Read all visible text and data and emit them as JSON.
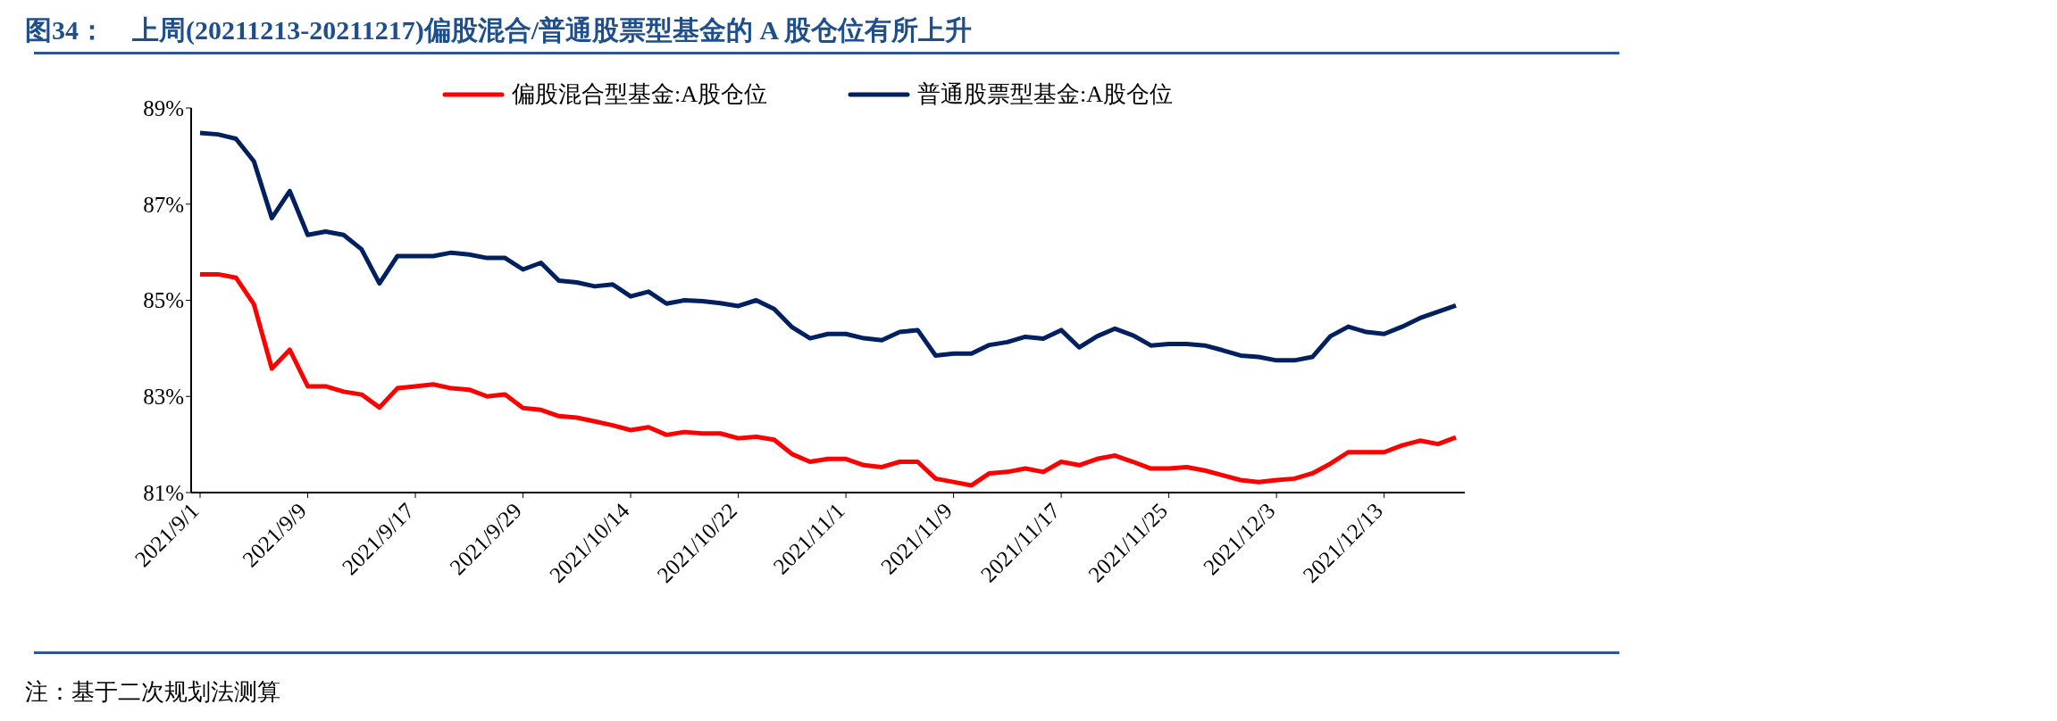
{
  "chart_data": {
    "type": "line",
    "title": "图34：    上周(20211213-20211217)偏股混合/普通股票型基金的 A 股仓位有所上升",
    "annotations": [
      "注：基于二次规划法测算"
    ],
    "categories": [
      "2021/9/1",
      null,
      null,
      null,
      null,
      null,
      "2021/9/9",
      null,
      null,
      null,
      null,
      null,
      "2021/9/17",
      null,
      null,
      null,
      null,
      null,
      "2021/9/29",
      null,
      null,
      null,
      null,
      null,
      "2021/10/14",
      null,
      null,
      null,
      null,
      null,
      "2021/10/22",
      null,
      null,
      null,
      null,
      null,
      "2021/11/1",
      null,
      null,
      null,
      null,
      null,
      "2021/11/9",
      null,
      null,
      null,
      null,
      null,
      "2021/11/17",
      null,
      null,
      null,
      null,
      null,
      "2021/11/25",
      null,
      null,
      null,
      null,
      null,
      "2021/12/3",
      null,
      null,
      null,
      null,
      null,
      "2021/12/13",
      null,
      null,
      null,
      null
    ],
    "series": [
      {
        "name": "偏股混合型基金:A股仓位",
        "color": "#ff0000",
        "values": [
          85.54,
          85.54,
          85.47,
          84.92,
          83.58,
          83.97,
          83.21,
          83.21,
          83.1,
          83.04,
          82.77,
          83.17,
          83.21,
          83.25,
          83.17,
          83.14,
          83.0,
          83.04,
          82.76,
          82.72,
          82.59,
          82.56,
          82.48,
          82.4,
          82.3,
          82.36,
          82.2,
          82.26,
          82.23,
          82.23,
          82.13,
          82.16,
          82.1,
          81.8,
          81.64,
          81.7,
          81.7,
          81.57,
          81.53,
          81.64,
          81.64,
          81.29,
          81.22,
          81.15,
          81.4,
          81.43,
          81.5,
          81.43,
          81.64,
          81.57,
          81.7,
          81.77,
          81.64,
          81.5,
          81.5,
          81.53,
          81.46,
          81.36,
          81.26,
          81.22,
          81.26,
          81.29,
          81.4,
          81.6,
          81.84,
          81.84,
          81.84,
          81.98,
          82.08,
          82.01,
          82.15
        ]
      },
      {
        "name": "普通股票型基金:A股仓位",
        "color": "#002060",
        "values": [
          88.48,
          88.45,
          88.36,
          87.89,
          86.71,
          87.27,
          86.36,
          86.43,
          86.36,
          86.06,
          85.35,
          85.92,
          85.92,
          85.92,
          85.99,
          85.95,
          85.88,
          85.88,
          85.64,
          85.78,
          85.41,
          85.37,
          85.29,
          85.33,
          85.08,
          85.18,
          84.93,
          85.0,
          84.98,
          84.94,
          84.88,
          85.0,
          84.82,
          84.44,
          84.21,
          84.3,
          84.3,
          84.21,
          84.17,
          84.34,
          84.38,
          83.85,
          83.89,
          83.89,
          84.07,
          84.13,
          84.24,
          84.2,
          84.38,
          84.02,
          84.25,
          84.41,
          84.27,
          84.06,
          84.09,
          84.09,
          84.06,
          83.96,
          83.85,
          83.82,
          83.75,
          83.75,
          83.82,
          84.25,
          84.45,
          84.34,
          84.3,
          84.45,
          84.63,
          84.76,
          84.89
        ]
      }
    ],
    "ylim": [
      81,
      89
    ],
    "yticks": [
      {
        "value": 81,
        "label": "81%"
      },
      {
        "value": 83,
        "label": "83%"
      },
      {
        "value": 85,
        "label": "85%"
      },
      {
        "value": 87,
        "label": "87%"
      },
      {
        "value": 89,
        "label": "89%"
      }
    ],
    "legend": "top",
    "grid": false,
    "marker": "none",
    "line_style": "solid"
  }
}
